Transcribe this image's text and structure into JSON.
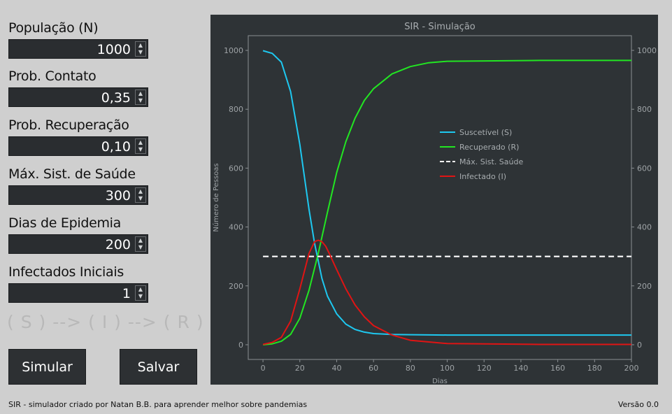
{
  "fields": [
    {
      "label": "População (N)",
      "value": "1000"
    },
    {
      "label": "Prob. Contato",
      "value": "0,35"
    },
    {
      "label": "Prob. Recuperação",
      "value": "0,10"
    },
    {
      "label": "Máx. Sist. de Saúde",
      "value": "300"
    },
    {
      "label": "Dias de Epidemia",
      "value": "200"
    },
    {
      "label": "Infectados Iniciais",
      "value": "1"
    }
  ],
  "flow_text": "( S ) --> ( I ) --> ( R )",
  "buttons": {
    "simulate": "Simular",
    "save": "Salvar"
  },
  "footer": {
    "credit": "SIR -  simulador criado por  Natan B.B.  para aprender melhor sobre pandemias",
    "version": "Versão 0.0"
  },
  "colors": {
    "panel_bg": "#2e3336",
    "susceptible": "#1ec8f0",
    "recovered": "#22e622",
    "max_health": "#ffffff",
    "infected": "#e01414"
  },
  "chart_data": {
    "type": "line",
    "title": "SIR - Simulação",
    "xlabel": "Dias",
    "ylabel": "Número de Pessoas",
    "xlim": [
      -8,
      200
    ],
    "ylim": [
      -50,
      1050
    ],
    "xticks": [
      0,
      20,
      40,
      60,
      80,
      100,
      120,
      140,
      160,
      180,
      200
    ],
    "yticks": [
      0,
      200,
      400,
      600,
      800,
      1000
    ],
    "legend_position": "center-right",
    "grid": false,
    "series": [
      {
        "name": "Suscetível (S)",
        "color_key": "susceptible",
        "dashed": false,
        "x": [
          0,
          5,
          10,
          15,
          20,
          25,
          28,
          30,
          32,
          35,
          40,
          45,
          50,
          55,
          60,
          70,
          80,
          100,
          150,
          200
        ],
        "y": [
          999,
          990,
          960,
          860,
          680,
          460,
          345,
          285,
          225,
          165,
          105,
          70,
          52,
          43,
          38,
          35,
          34,
          33,
          33,
          33
        ]
      },
      {
        "name": "Recuperado (R)",
        "color_key": "recovered",
        "dashed": false,
        "x": [
          0,
          5,
          10,
          15,
          20,
          25,
          30,
          35,
          40,
          45,
          50,
          55,
          60,
          70,
          80,
          90,
          100,
          150,
          200
        ],
        "y": [
          0,
          3,
          12,
          35,
          90,
          185,
          310,
          450,
          585,
          690,
          770,
          830,
          870,
          920,
          945,
          958,
          963,
          966,
          966
        ]
      },
      {
        "name": "Máx. Sist. Saúde",
        "color_key": "max_health",
        "dashed": true,
        "x": [
          0,
          200
        ],
        "y": [
          300,
          300
        ]
      },
      {
        "name": "Infectado (I)",
        "color_key": "infected",
        "dashed": false,
        "x": [
          0,
          5,
          10,
          15,
          20,
          25,
          28,
          30,
          32,
          34,
          36,
          40,
          45,
          50,
          55,
          60,
          70,
          80,
          100,
          150,
          200
        ],
        "y": [
          1,
          8,
          25,
          80,
          190,
          310,
          350,
          355,
          350,
          335,
          310,
          255,
          190,
          135,
          95,
          65,
          33,
          15,
          4,
          1,
          1
        ]
      }
    ]
  }
}
